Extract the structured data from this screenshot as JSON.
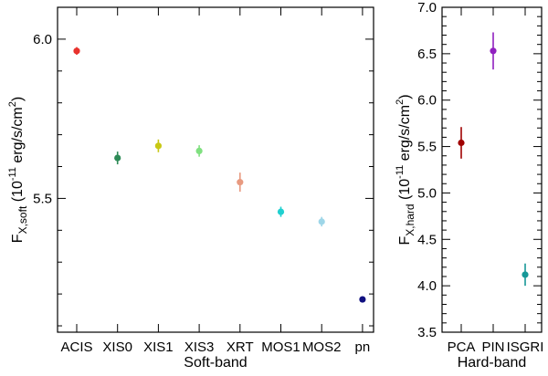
{
  "chart_data": [
    {
      "type": "scatter",
      "xlabel": "Soft-band",
      "ylabel": {
        "main": "F",
        "sub": "X,soft",
        "paren_open": " (10",
        "exp": "-11",
        "units": " erg/s/cm",
        "units_exp": "2",
        "paren_close": ")"
      },
      "ylim": [
        5.08,
        6.1
      ],
      "yticks_major": [
        5.5,
        6.0
      ],
      "ytick_labels": [
        "5.5",
        "6.0"
      ],
      "yticks_minor": [
        5.1,
        5.2,
        5.3,
        5.4,
        5.6,
        5.7,
        5.8,
        5.9,
        6.1
      ],
      "categories": [
        "ACIS",
        "XIS0",
        "XIS1",
        "XIS3",
        "XRT",
        "MOS1",
        "MOS2",
        "pn"
      ],
      "values": [
        5.963,
        5.627,
        5.665,
        5.649,
        5.551,
        5.458,
        5.427,
        5.183
      ],
      "errors": [
        0.012,
        0.02,
        0.02,
        0.018,
        0.03,
        0.016,
        0.015,
        0.008
      ],
      "colors": [
        "#e8322d",
        "#2e8b57",
        "#c8c814",
        "#80e080",
        "#e89a80",
        "#20d0d0",
        "#9ed6e8",
        "#101080"
      ]
    },
    {
      "type": "scatter",
      "xlabel": "Hard-band",
      "ylabel": {
        "main": "F",
        "sub": "X,hard",
        "paren_open": " (10",
        "exp": "-11",
        "units": " erg/s/cm",
        "units_exp": "2",
        "paren_close": ")"
      },
      "ylim": [
        3.5,
        7.0
      ],
      "yticks_major": [
        3.5,
        4.0,
        4.5,
        5.0,
        5.5,
        6.0,
        6.5,
        7.0
      ],
      "ytick_labels": [
        "3.5",
        "4.0",
        "4.5",
        "5.0",
        "5.5",
        "6.0",
        "6.5",
        "7.0"
      ],
      "yticks_minor": [
        3.6,
        3.7,
        3.8,
        3.9,
        4.1,
        4.2,
        4.3,
        4.4,
        4.6,
        4.7,
        4.8,
        4.9,
        5.1,
        5.2,
        5.3,
        5.4,
        5.6,
        5.7,
        5.8,
        5.9,
        6.1,
        6.2,
        6.3,
        6.4,
        6.6,
        6.7,
        6.8,
        6.9
      ],
      "categories": [
        "PCA",
        "PIN",
        "ISGRI"
      ],
      "values": [
        5.54,
        6.53,
        4.12
      ],
      "errors": [
        0.17,
        0.2,
        0.12
      ],
      "colors": [
        "#a00000",
        "#9020c0",
        "#169898"
      ]
    }
  ]
}
